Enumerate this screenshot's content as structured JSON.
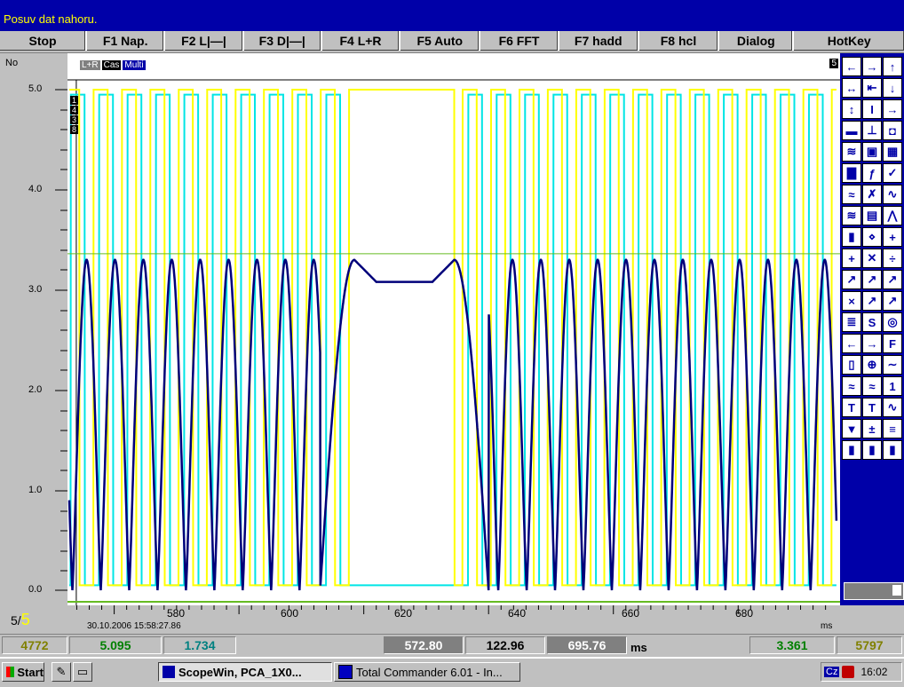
{
  "status_text": "Posuv dat nahoru.",
  "function_keys": [
    "Stop",
    "F1 Nap.",
    "F2 L|—|",
    "F3 D|—|",
    "F4 L+R",
    "F5 Auto",
    "F6 FFT",
    "F7 hadd",
    "F8 hcl",
    "Dialog",
    "HotKey"
  ],
  "left_pane": {
    "no_label": "No",
    "y_ticks": [
      "5.0",
      "4.0",
      "3.0",
      "2.0",
      "1.0",
      "0.0"
    ]
  },
  "plot_header": {
    "lr": "L+R",
    "cas": "Cas",
    "multi": "Multi",
    "corner": "5"
  },
  "channels": [
    "1",
    "4",
    "3",
    "8"
  ],
  "x_axis": {
    "ticks": [
      "580",
      "600",
      "620",
      "640",
      "660",
      "680"
    ],
    "datetime": "30.10.2006  15:58:27.86",
    "unit_fragment": "ms"
  },
  "scroll_indicator": {
    "page": "5/",
    "page_current": "5"
  },
  "values": {
    "left_count": "4772",
    "v1": "5.095",
    "v2": "1.734",
    "t_start": "572.80",
    "t_span": "122.96",
    "t_end": "695.76",
    "t_unit": "ms",
    "v3": "3.361",
    "right_count": "5797"
  },
  "taskbar": {
    "start": "Start",
    "app1": "ScopeWin, PCA_1X0...",
    "app2": "Total Commander 6.01 - In...",
    "lang": "Cz",
    "clock": "16:02"
  },
  "chart_data": {
    "type": "line",
    "x_label": "ms",
    "xlim": [
      572.8,
      695.76
    ],
    "ylim": [
      0,
      5.2
    ],
    "reference_line": 3.361,
    "series": [
      {
        "color": "#00e5e5",
        "kind": "square",
        "high": 4.95,
        "low": 0.05
      },
      {
        "color": "#ffff00",
        "kind": "square",
        "high": 5.0,
        "low": 0.05
      },
      {
        "color": "#00007a",
        "kind": "sine-like",
        "high": 3.3,
        "low": 0.0
      }
    ],
    "colors": {
      "cyan": "#00e5e5",
      "yellow": "#ffff00",
      "navy": "#00007a",
      "green": "#66bb22"
    }
  }
}
